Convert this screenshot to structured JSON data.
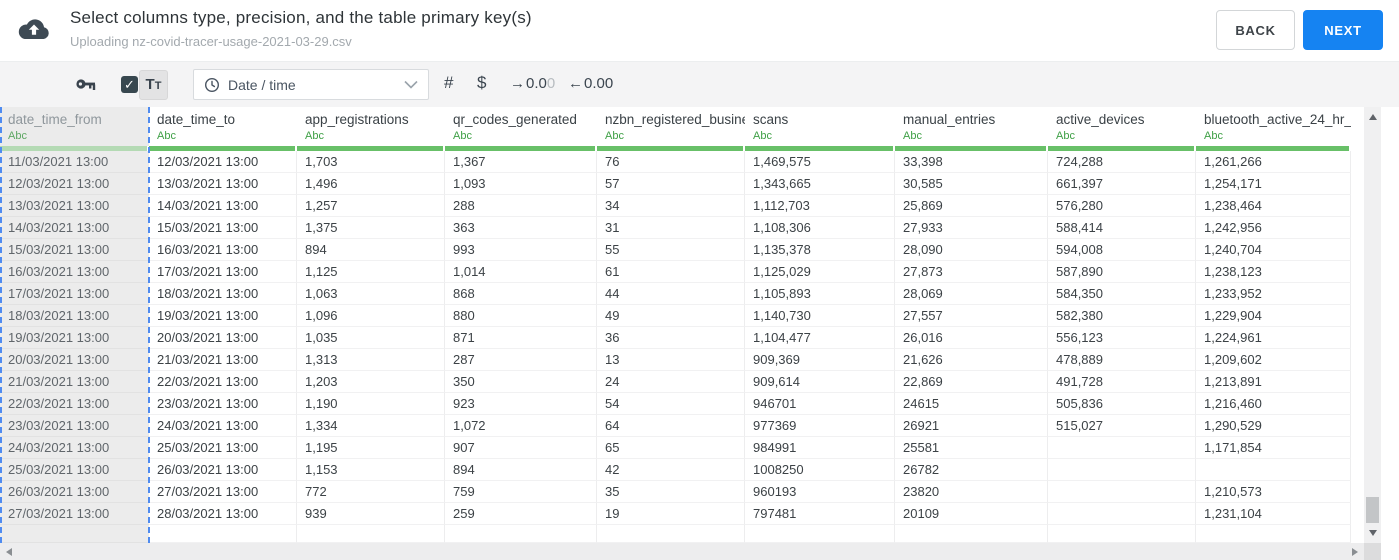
{
  "header": {
    "title": "Select columns type, precision, and the table primary key(s)",
    "subtitle": "Uploading nz-covid-tracer-usage-2021-03-29.csv",
    "back_label": "BACK",
    "next_label": "NEXT"
  },
  "toolbar": {
    "primary_key_icon": "key",
    "checkbox_checked": true,
    "check_glyph": "✓",
    "text_type_button": {
      "big": "T",
      "small": "T"
    },
    "type_dropdown_value": "Date / time",
    "numeric_label": "#",
    "currency_label": "$",
    "decimal_increase": {
      "arrow": "→",
      "main": "0.0",
      "faded": "0"
    },
    "decimal_decrease": {
      "arrow": "←",
      "main": "0.00"
    }
  },
  "table": {
    "type_badge": "Abc",
    "columns": [
      {
        "name": "date_time_from",
        "type": "Abc",
        "selected": true
      },
      {
        "name": "date_time_to",
        "type": "Abc",
        "selected": false
      },
      {
        "name": "app_registrations",
        "type": "Abc",
        "selected": false
      },
      {
        "name": "qr_codes_generated",
        "type": "Abc",
        "selected": false
      },
      {
        "name": "nzbn_registered_busine",
        "type": "Abc",
        "selected": false
      },
      {
        "name": "scans",
        "type": "Abc",
        "selected": false
      },
      {
        "name": "manual_entries",
        "type": "Abc",
        "selected": false
      },
      {
        "name": "active_devices",
        "type": "Abc",
        "selected": false
      },
      {
        "name": "bluetooth_active_24_hr_",
        "type": "Abc",
        "selected": false
      }
    ],
    "rows": [
      [
        "11/03/2021 13:00",
        "12/03/2021 13:00",
        "1,703",
        "1,367",
        "76",
        "1,469,575",
        "33,398",
        "724,288",
        "1,261,266"
      ],
      [
        "12/03/2021 13:00",
        "13/03/2021 13:00",
        "1,496",
        "1,093",
        "57",
        "1,343,665",
        "30,585",
        "661,397",
        "1,254,171"
      ],
      [
        "13/03/2021 13:00",
        "14/03/2021 13:00",
        "1,257",
        "288",
        "34",
        "1,112,703",
        "25,869",
        "576,280",
        "1,238,464"
      ],
      [
        "14/03/2021 13:00",
        "15/03/2021 13:00",
        "1,375",
        "363",
        "31",
        "1,108,306",
        "27,933",
        "588,414",
        "1,242,956"
      ],
      [
        "15/03/2021 13:00",
        "16/03/2021 13:00",
        "894",
        "993",
        "55",
        "1,135,378",
        "28,090",
        "594,008",
        "1,240,704"
      ],
      [
        "16/03/2021 13:00",
        "17/03/2021 13:00",
        "1,125",
        "1,014",
        "61",
        "1,125,029",
        "27,873",
        "587,890",
        "1,238,123"
      ],
      [
        "17/03/2021 13:00",
        "18/03/2021 13:00",
        "1,063",
        "868",
        "44",
        "1,105,893",
        "28,069",
        "584,350",
        "1,233,952"
      ],
      [
        "18/03/2021 13:00",
        "19/03/2021 13:00",
        "1,096",
        "880",
        "49",
        "1,140,730",
        "27,557",
        "582,380",
        "1,229,904"
      ],
      [
        "19/03/2021 13:00",
        "20/03/2021 13:00",
        "1,035",
        "871",
        "36",
        "1,104,477",
        "26,016",
        "556,123",
        "1,224,961"
      ],
      [
        "20/03/2021 13:00",
        "21/03/2021 13:00",
        "1,313",
        "287",
        "13",
        "909,369",
        "21,626",
        "478,889",
        "1,209,602"
      ],
      [
        "21/03/2021 13:00",
        "22/03/2021 13:00",
        "1,203",
        "350",
        "24",
        "909,614",
        "22,869",
        "491,728",
        "1,213,891"
      ],
      [
        "22/03/2021 13:00",
        "23/03/2021 13:00",
        "1,190",
        "923",
        "54",
        "946701",
        "24615",
        "505,836",
        "1,216,460"
      ],
      [
        "23/03/2021 13:00",
        "24/03/2021 13:00",
        "1,334",
        "1,072",
        "64",
        "977369",
        "26921",
        "515,027",
        "1,290,529"
      ],
      [
        "24/03/2021 13:00",
        "25/03/2021 13:00",
        "1,195",
        "907",
        "65",
        "984991",
        "25581",
        "",
        "1,171,854"
      ],
      [
        "25/03/2021 13:00",
        "26/03/2021 13:00",
        "1,153",
        "894",
        "42",
        "1008250",
        "26782",
        "",
        ""
      ],
      [
        "26/03/2021 13:00",
        "27/03/2021 13:00",
        "772",
        "759",
        "35",
        "960193",
        "23820",
        "",
        "1,210,573"
      ],
      [
        "27/03/2021 13:00",
        "28/03/2021 13:00",
        "939",
        "259",
        "19",
        "797481",
        "20109",
        "",
        "1,231,104"
      ]
    ]
  },
  "colors": {
    "accent_blue": "#1583f2",
    "type_green": "#3fa046",
    "bar_green": "#68c068",
    "selected_bar_green": "#b4dab4",
    "selection_dash_blue": "#4f8bf0",
    "toolbar_bg": "#f4f4f5"
  }
}
